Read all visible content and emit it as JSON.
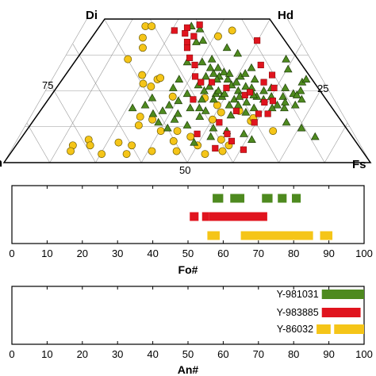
{
  "chart_data": [
    {
      "type": "scatter",
      "subtype": "ternary-pyroxene-quadrilateral",
      "vertices": {
        "bottom_left": "En",
        "bottom_right": "Fs",
        "top_left": "Di",
        "top_right": "Hd"
      },
      "grid_labels": [
        "75",
        "25",
        "50"
      ],
      "series": [
        {
          "marker": "circle",
          "color": "#f5c518",
          "points": [
            [
              30,
              95
            ],
            [
              33,
              95
            ],
            [
              30,
              87
            ],
            [
              31,
              80
            ],
            [
              26,
              72
            ],
            [
              33,
              61
            ],
            [
              39,
              58
            ],
            [
              40,
              59
            ],
            [
              34,
              55
            ],
            [
              37,
              53
            ],
            [
              45,
              46
            ],
            [
              56,
              45
            ],
            [
              60,
              40
            ],
            [
              58,
              30
            ],
            [
              61,
              35
            ],
            [
              70,
              29
            ],
            [
              71,
              31
            ],
            [
              67,
              36
            ],
            [
              35,
              32
            ],
            [
              39,
              30
            ],
            [
              35,
              26
            ],
            [
              42,
              22
            ],
            [
              47,
              22
            ],
            [
              46,
              15
            ],
            [
              51,
              18
            ],
            [
              53,
              12
            ],
            [
              60,
              16
            ],
            [
              30,
              14
            ],
            [
              34,
              12
            ],
            [
              21,
              16
            ],
            [
              22,
              12
            ],
            [
              17,
              12
            ],
            [
              17,
              8
            ],
            [
              26,
              6
            ],
            [
              33,
              6
            ],
            [
              40,
              8
            ],
            [
              47,
              8
            ],
            [
              55,
              6
            ],
            [
              60,
              8
            ],
            [
              76,
              22
            ],
            [
              62,
              12
            ],
            [
              71,
              92
            ],
            [
              64,
              88
            ]
          ]
        },
        {
          "marker": "square",
          "color": "#e0141e",
          "points": [
            [
              44,
              92
            ],
            [
              49,
              90
            ],
            [
              50,
              94
            ],
            [
              56,
              96
            ],
            [
              53,
              88
            ],
            [
              50,
              80
            ],
            [
              51,
              73
            ],
            [
              53,
              68
            ],
            [
              53,
              60
            ],
            [
              55,
              56
            ],
            [
              50,
              84
            ],
            [
              59,
              56
            ],
            [
              64,
              52
            ],
            [
              70,
              47
            ],
            [
              72,
              49
            ],
            [
              76,
              42
            ],
            [
              79,
              68
            ],
            [
              82,
              61
            ],
            [
              81,
              52
            ],
            [
              79,
              43
            ],
            [
              76,
              34
            ],
            [
              66,
              36
            ],
            [
              71,
              28
            ],
            [
              60,
              28
            ],
            [
              62,
              20
            ],
            [
              63,
              15
            ],
            [
              58,
              10
            ],
            [
              53,
              20
            ],
            [
              66,
              9
            ],
            [
              52,
              44
            ],
            [
              73,
              34
            ],
            [
              78,
              56
            ],
            [
              81,
              85
            ]
          ]
        },
        {
          "marker": "triangle",
          "color": "#4e8a1f",
          "points": [
            [
              52,
              95
            ],
            [
              56,
              93
            ],
            [
              54,
              84
            ],
            [
              59,
              66
            ],
            [
              57,
              60
            ],
            [
              54,
              54
            ],
            [
              60,
              62
            ],
            [
              62,
              60
            ],
            [
              65,
              58
            ],
            [
              66,
              54
            ],
            [
              68,
              56
            ],
            [
              70,
              60
            ],
            [
              72,
              62
            ],
            [
              75,
              58
            ],
            [
              73,
              52
            ],
            [
              68,
              50
            ],
            [
              66,
              44
            ],
            [
              62,
              46
            ],
            [
              60,
              48
            ],
            [
              58,
              53
            ],
            [
              61,
              50
            ],
            [
              56,
              50
            ],
            [
              55,
              44
            ],
            [
              50,
              48
            ],
            [
              47,
              43
            ],
            [
              44,
              40
            ],
            [
              47,
              34
            ],
            [
              42,
              36
            ],
            [
              56,
              36
            ],
            [
              54,
              32
            ],
            [
              64,
              40
            ],
            [
              67,
              40
            ],
            [
              70,
              42
            ],
            [
              74,
              46
            ],
            [
              77,
              50
            ],
            [
              79,
              46
            ],
            [
              80,
              40
            ],
            [
              83,
              46
            ],
            [
              85,
              52
            ],
            [
              87,
              48
            ],
            [
              89,
              44
            ],
            [
              90,
              50
            ],
            [
              86,
              40
            ],
            [
              82,
              38
            ],
            [
              78,
              38
            ],
            [
              72,
              38
            ],
            [
              69,
              35
            ],
            [
              64,
              33
            ],
            [
              58,
              24
            ],
            [
              50,
              26
            ],
            [
              44,
              24
            ],
            [
              41,
              28
            ],
            [
              39,
              34
            ],
            [
              36,
              40
            ],
            [
              32,
              38
            ],
            [
              38,
              45
            ],
            [
              52,
              14
            ],
            [
              57,
              18
            ],
            [
              62,
              22
            ],
            [
              67,
              20
            ],
            [
              69,
              16
            ],
            [
              88,
              18
            ],
            [
              85,
              24
            ],
            [
              81,
              28
            ],
            [
              89,
              65
            ],
            [
              92,
              56
            ],
            [
              94,
              58
            ],
            [
              90,
              72
            ],
            [
              88,
              47
            ],
            [
              83,
              42
            ],
            [
              75,
              66
            ],
            [
              71,
              76
            ],
            [
              67,
              80
            ],
            [
              57,
              85
            ],
            [
              50,
              70
            ],
            [
              47,
              58
            ],
            [
              45,
              52
            ],
            [
              61,
              58
            ],
            [
              64,
              63
            ],
            [
              63,
              48
            ],
            [
              59,
              44
            ],
            [
              68,
              46
            ],
            [
              73,
              47
            ],
            [
              76,
              44
            ],
            [
              80,
              52
            ],
            [
              71,
              53
            ],
            [
              66,
              62
            ],
            [
              62,
              66
            ],
            [
              56,
              70
            ],
            [
              60,
              72
            ],
            [
              54,
              38
            ],
            [
              51,
              38
            ],
            [
              46,
              30
            ]
          ]
        }
      ]
    },
    {
      "type": "range-bars",
      "xlabel": "Fo#",
      "xlim": [
        0,
        100
      ],
      "xticks": [
        0,
        10,
        20,
        30,
        40,
        50,
        60,
        70,
        80,
        90,
        100
      ],
      "series": [
        {
          "color": "#4e8a1f",
          "segments": [
            [
              57,
              60
            ],
            [
              62,
              66
            ],
            [
              71,
              74
            ],
            [
              75.5,
              78
            ],
            [
              79.5,
              82
            ]
          ]
        },
        {
          "color": "#e0141e",
          "segments": [
            [
              50.5,
              53
            ],
            [
              54,
              56
            ],
            [
              56,
              72.5
            ]
          ]
        },
        {
          "color": "#f5c518",
          "segments": [
            [
              55.5,
              59
            ],
            [
              65,
              85.5
            ],
            [
              87.5,
              91
            ]
          ]
        }
      ]
    },
    {
      "type": "range-bars",
      "xlabel": "An#",
      "xlim": [
        0,
        100
      ],
      "xticks": [
        0,
        10,
        20,
        30,
        40,
        50,
        60,
        70,
        80,
        90,
        100
      ],
      "series": [
        {
          "name": "Y-981031",
          "color": "#4e8a1f",
          "segments": [
            [
              88,
              100
            ]
          ]
        },
        {
          "name": "Y-983885",
          "color": "#e0141e",
          "segments": [
            [
              88,
              99
            ]
          ]
        },
        {
          "name": "Y-86032",
          "color": "#f5c518",
          "segments": [
            [
              86.5,
              90.5
            ],
            [
              91.5,
              100
            ]
          ]
        }
      ]
    }
  ]
}
